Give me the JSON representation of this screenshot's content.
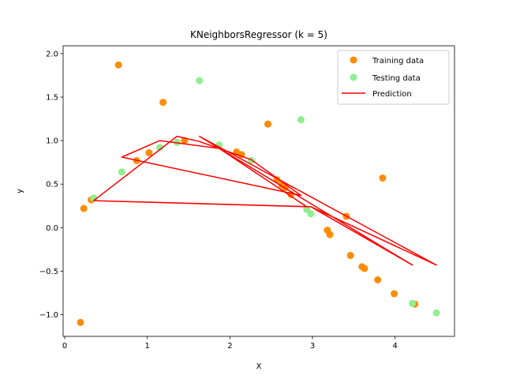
{
  "chart_data": {
    "type": "scatter",
    "title": "KNeighborsRegressor (k = 5)",
    "xlabel": "X",
    "ylabel": "y",
    "xlim": [
      -0.02,
      4.72
    ],
    "ylim": [
      -1.25,
      2.09
    ],
    "xticks": [
      0,
      1,
      2,
      3,
      4
    ],
    "yticks": [
      -1.0,
      -0.5,
      0.0,
      0.5,
      1.0,
      1.5,
      2.0
    ],
    "xtick_labels": [
      "0",
      "1",
      "2",
      "3",
      "4"
    ],
    "ytick_labels": [
      "−1.0",
      "−0.5",
      "0.0",
      "0.5",
      "1.0",
      "1.5",
      "2.0"
    ],
    "grid": false,
    "legend_position": "top-right",
    "series": [
      {
        "name": "Training data",
        "kind": "scatter",
        "color": "#ff8c00",
        "points": [
          [
            0.19,
            -1.09
          ],
          [
            0.23,
            0.22
          ],
          [
            0.32,
            0.32
          ],
          [
            0.65,
            1.87
          ],
          [
            0.87,
            0.77
          ],
          [
            1.02,
            0.86
          ],
          [
            1.19,
            1.44
          ],
          [
            1.45,
            1.0
          ],
          [
            2.08,
            0.87
          ],
          [
            2.14,
            0.84
          ],
          [
            2.46,
            1.19
          ],
          [
            2.57,
            0.55
          ],
          [
            2.63,
            0.49
          ],
          [
            2.67,
            0.46
          ],
          [
            2.74,
            0.38
          ],
          [
            3.18,
            -0.03
          ],
          [
            3.21,
            -0.08
          ],
          [
            3.41,
            0.13
          ],
          [
            3.46,
            -0.32
          ],
          [
            3.6,
            -0.45
          ],
          [
            3.63,
            -0.47
          ],
          [
            3.79,
            -0.6
          ],
          [
            3.85,
            0.57
          ],
          [
            3.99,
            -0.76
          ],
          [
            4.24,
            -0.88
          ]
        ]
      },
      {
        "name": "Testing data",
        "kind": "scatter",
        "color": "#90ee90",
        "points": [
          [
            0.35,
            0.34
          ],
          [
            0.69,
            0.64
          ],
          [
            1.15,
            0.92
          ],
          [
            1.36,
            0.98
          ],
          [
            1.63,
            1.69
          ],
          [
            1.87,
            0.95
          ],
          [
            2.26,
            0.77
          ],
          [
            2.86,
            1.24
          ],
          [
            2.93,
            0.21
          ],
          [
            2.98,
            0.16
          ],
          [
            4.21,
            -0.87
          ],
          [
            4.5,
            -0.98
          ]
        ]
      },
      {
        "name": "Prediction",
        "kind": "line",
        "color": "#ff0000",
        "points": [
          [
            0.35,
            0.31
          ],
          [
            1.36,
            1.05
          ],
          [
            1.63,
            0.99
          ],
          [
            2.26,
            0.78
          ],
          [
            2.86,
            0.37
          ],
          [
            0.69,
            0.81
          ],
          [
            1.15,
            1.0
          ],
          [
            1.87,
            0.91
          ],
          [
            2.93,
            0.24
          ],
          [
            0.35,
            0.31
          ],
          [
            2.98,
            0.24
          ],
          [
            4.21,
            -0.43
          ],
          [
            1.63,
            1.05
          ],
          [
            4.5,
            -0.43
          ],
          [
            2.98,
            0.24
          ]
        ]
      }
    ]
  }
}
